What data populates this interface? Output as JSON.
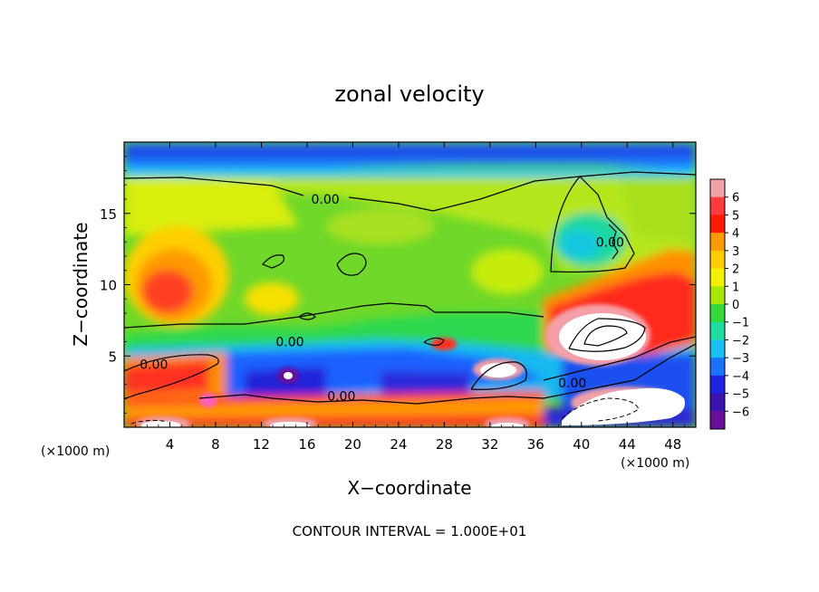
{
  "chart_data": {
    "type": "heatmap",
    "title": "zonal velocity",
    "xlabel": "X−coordinate",
    "ylabel": "Z−coordinate",
    "x_unit_left": "(×1000 m)",
    "x_unit_right": "(×1000 m)",
    "footer": "CONTOUR INTERVAL = 1.000E+01",
    "xlim": [
      0,
      50
    ],
    "ylim": [
      0,
      20
    ],
    "xticks": [
      4,
      8,
      12,
      16,
      20,
      24,
      28,
      32,
      36,
      40,
      44,
      48
    ],
    "xtick_labels": [
      "4",
      "8",
      "12",
      "16",
      "20",
      "24",
      "28",
      "32",
      "36",
      "40",
      "44",
      "48"
    ],
    "yticks": [
      5,
      10,
      15
    ],
    "ytick_labels": [
      "5",
      "10",
      "15"
    ],
    "colorbar": {
      "range": [
        -6,
        6
      ],
      "labels": [
        "6",
        "5",
        "4",
        "3",
        "2",
        "1",
        "0",
        "−1",
        "−2",
        "−3",
        "−4",
        "−5",
        "−6"
      ],
      "colors": [
        "#f0a0a8",
        "#ff3b3b",
        "#ff1a00",
        "#ff9a00",
        "#ffcc00",
        "#f2f200",
        "#a8e600",
        "#33d93a",
        "#1fdca0",
        "#18c0f0",
        "#1a72ff",
        "#1f22e0",
        "#3a12b0",
        "#6a0f9a"
      ]
    },
    "contour_labels": [
      {
        "text": "0.00",
        "x": 17.6,
        "z": 16.0
      },
      {
        "text": "0.00",
        "x": 42.5,
        "z": 13.0
      },
      {
        "text": "0.00",
        "x": 14.5,
        "z": 6.0
      },
      {
        "text": "0.00",
        "x": 2.6,
        "z": 4.4
      },
      {
        "text": "0.00",
        "x": 19.0,
        "z": 2.2
      },
      {
        "text": "0.00",
        "x": 39.2,
        "z": 3.1
      }
    ]
  }
}
